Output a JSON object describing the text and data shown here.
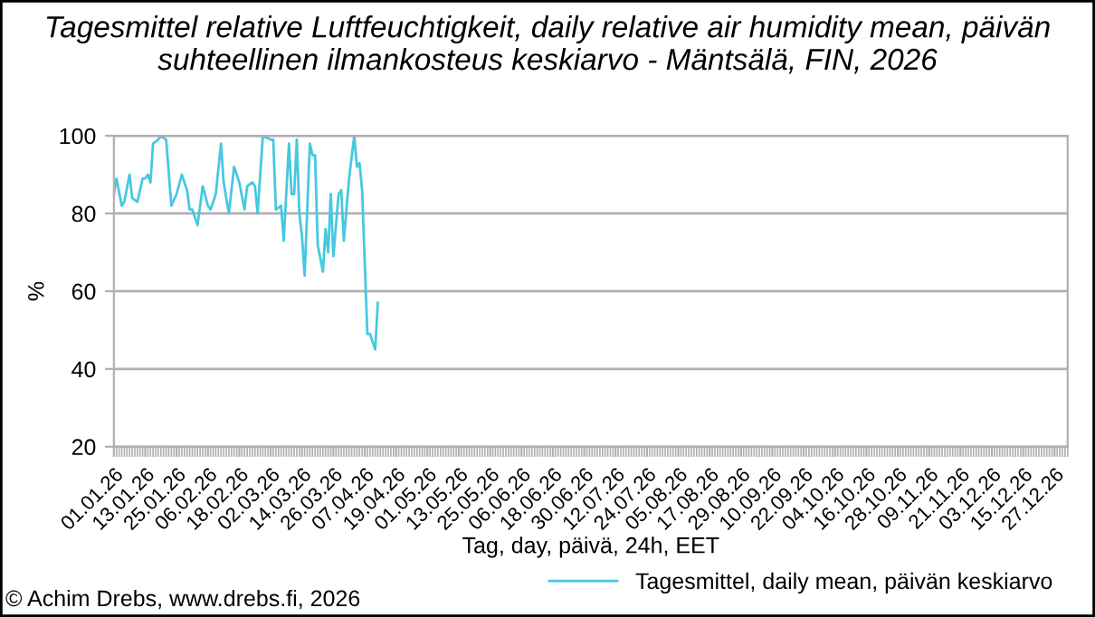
{
  "chart_data": {
    "type": "line",
    "title": "Tagesmittel relative Luftfeuchtigkeit, daily relative air humidity mean, päivän suhteellinen ilmankosteus keskiarvo - Mäntsälä, FIN, 2026",
    "xlabel": "Tag, day, päivä, 24h, EET",
    "ylabel": "%",
    "x": [
      "2026-01-01",
      "2026-01-02",
      "2026-01-04",
      "2026-01-05",
      "2026-01-07",
      "2026-01-08",
      "2026-01-10",
      "2026-01-12",
      "2026-01-13",
      "2026-01-14",
      "2026-01-15",
      "2026-01-16",
      "2026-01-18",
      "2026-01-19",
      "2026-01-21",
      "2026-01-23",
      "2026-01-25",
      "2026-01-27",
      "2026-01-29",
      "2026-01-30",
      "2026-01-31",
      "2026-02-02",
      "2026-02-04",
      "2026-02-06",
      "2026-02-07",
      "2026-02-09",
      "2026-02-11",
      "2026-02-12",
      "2026-02-14",
      "2026-02-16",
      "2026-02-18",
      "2026-02-20",
      "2026-02-21",
      "2026-02-23",
      "2026-02-24",
      "2026-02-25",
      "2026-02-27",
      "2026-03-02",
      "2026-03-03",
      "2026-03-04",
      "2026-03-06",
      "2026-03-07",
      "2026-03-09",
      "2026-03-10",
      "2026-03-11",
      "2026-03-12",
      "2026-03-13",
      "2026-03-14",
      "2026-03-15",
      "2026-03-17",
      "2026-03-18",
      "2026-03-19",
      "2026-03-20",
      "2026-03-22",
      "2026-03-23",
      "2026-03-24",
      "2026-03-25",
      "2026-03-26",
      "2026-03-28",
      "2026-03-29",
      "2026-03-30",
      "2026-04-01",
      "2026-04-03",
      "2026-04-04",
      "2026-04-05",
      "2026-04-06",
      "2026-04-08",
      "2026-04-09",
      "2026-04-11",
      "2026-04-12"
    ],
    "series": [
      {
        "name": "Tagesmittel, daily mean, päivän keskiarvo",
        "color": "#47c8e0",
        "values": [
          85,
          89,
          82,
          83,
          90,
          84,
          83,
          89,
          89,
          90,
          88,
          98,
          99,
          100,
          99,
          82,
          85,
          90,
          86,
          81,
          81,
          77,
          87,
          82,
          81,
          85,
          98,
          88,
          80,
          92,
          88,
          81,
          87,
          88,
          87,
          80,
          100,
          99,
          99,
          81,
          82,
          73,
          98,
          85,
          85,
          99,
          80,
          74,
          64,
          98,
          95,
          95,
          72,
          65,
          76,
          70,
          85,
          69,
          85,
          86,
          73,
          89,
          100,
          92,
          93,
          86,
          49,
          49,
          45,
          57
        ]
      }
    ],
    "ylim": [
      20,
      100
    ],
    "yticks": [
      20,
      40,
      60,
      80,
      100
    ],
    "xlim": [
      "2026-01-01",
      "2027-01-01"
    ],
    "xticks": [
      {
        "value": "2026-01-01",
        "label": "01.01.26"
      },
      {
        "value": "2026-01-13",
        "label": "13.01.26"
      },
      {
        "value": "2026-01-25",
        "label": "25.01.26"
      },
      {
        "value": "2026-02-06",
        "label": "06.02.26"
      },
      {
        "value": "2026-02-18",
        "label": "18.02.26"
      },
      {
        "value": "2026-03-02",
        "label": "02.03.26"
      },
      {
        "value": "2026-03-14",
        "label": "14.03.26"
      },
      {
        "value": "2026-03-26",
        "label": "26.03.26"
      },
      {
        "value": "2026-04-07",
        "label": "07.04.26"
      },
      {
        "value": "2026-04-19",
        "label": "19.04.26"
      },
      {
        "value": "2026-05-01",
        "label": "01.05.26"
      },
      {
        "value": "2026-05-13",
        "label": "13.05.26"
      },
      {
        "value": "2026-05-25",
        "label": "25.05.26"
      },
      {
        "value": "2026-06-06",
        "label": "06.06.26"
      },
      {
        "value": "2026-06-18",
        "label": "18.06.26"
      },
      {
        "value": "2026-06-30",
        "label": "30.06.26"
      },
      {
        "value": "2026-07-12",
        "label": "12.07.26"
      },
      {
        "value": "2026-07-24",
        "label": "24.07.26"
      },
      {
        "value": "2026-08-05",
        "label": "05.08.26"
      },
      {
        "value": "2026-08-17",
        "label": "17.08.26"
      },
      {
        "value": "2026-08-29",
        "label": "29.08.26"
      },
      {
        "value": "2026-09-10",
        "label": "10.09.26"
      },
      {
        "value": "2026-09-22",
        "label": "22.09.26"
      },
      {
        "value": "2026-10-04",
        "label": "04.10.26"
      },
      {
        "value": "2026-10-16",
        "label": "16.10.26"
      },
      {
        "value": "2026-10-28",
        "label": "28.10.26"
      },
      {
        "value": "2026-11-09",
        "label": "09.11.26"
      },
      {
        "value": "2026-11-21",
        "label": "21.11.26"
      },
      {
        "value": "2026-12-03",
        "label": "03.12.26"
      },
      {
        "value": "2026-12-15",
        "label": "15.12.26"
      },
      {
        "value": "2026-12-27",
        "label": "27.12.26"
      }
    ],
    "grid": "y",
    "legend": "bottom right",
    "marker": "none",
    "line_style": "solid",
    "annotations": [
      "© Achim Drebs, www.drebs.fi, 2026"
    ]
  }
}
